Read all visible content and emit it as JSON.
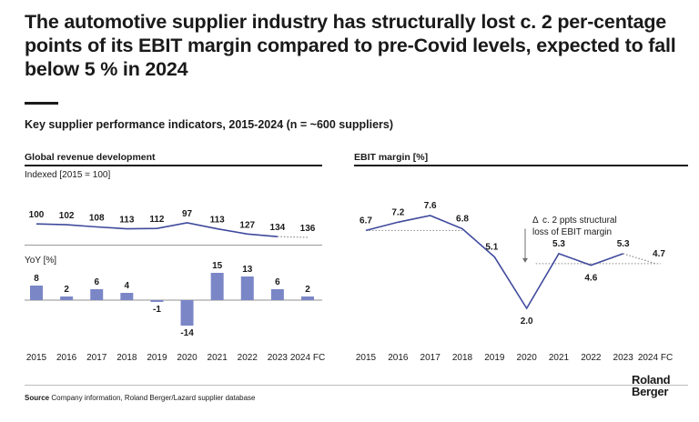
{
  "headline": "The automotive supplier industry has structurally lost c. 2 per-centage points of its EBIT margin compared to pre-Covid levels, expected to fall below 5 % in 2024",
  "subtitle": "Key supplier performance indicators, 2015-2024 (n = ~600 suppliers)",
  "left_panel": {
    "title": "Global revenue development",
    "indexed_label": "Indexed [2015 = 100]",
    "yoy_label": "YoY [%]"
  },
  "right_panel": {
    "title": "EBIT margin [%]",
    "annotation_line1": "c. 2 ppts structural",
    "annotation_line2": "loss of EBIT margin",
    "annotation_symbol": "Δ"
  },
  "colors": {
    "line": "#3f4a9c",
    "bar": "#7b86c7",
    "text": "#1a1a1a",
    "dotted": "#8a8a8a"
  },
  "chart_data": [
    {
      "type": "line",
      "title": "Global revenue development",
      "ylabel": "Indexed [2015 = 100]",
      "categories": [
        "2015",
        "2016",
        "2017",
        "2018",
        "2019",
        "2020",
        "2021",
        "2022",
        "2023",
        "2024 FC"
      ],
      "values": [
        100,
        102,
        108,
        113,
        112,
        97,
        113,
        127,
        134,
        136
      ],
      "forecast_from_index": 8
    },
    {
      "type": "bar",
      "ylabel": "YoY [%]",
      "categories": [
        "2015",
        "2016",
        "2017",
        "2018",
        "2019",
        "2020",
        "2021",
        "2022",
        "2023",
        "2024 FC"
      ],
      "values": [
        8,
        2,
        6,
        4,
        -1,
        -14,
        15,
        13,
        6,
        2
      ]
    },
    {
      "type": "line",
      "title": "EBIT margin [%]",
      "categories": [
        "2015",
        "2016",
        "2017",
        "2018",
        "2019",
        "2020",
        "2021",
        "2022",
        "2023",
        "2024 FC"
      ],
      "values": [
        6.7,
        7.2,
        7.6,
        6.8,
        5.1,
        2.0,
        5.3,
        4.6,
        5.3,
        4.7
      ],
      "forecast_from_index": 8,
      "annotation": "c. 2 ppts structural loss of EBIT margin"
    }
  ],
  "source": {
    "label": "Source",
    "text": "Company information, Roland Berger/Lazard supplier database"
  },
  "logo": {
    "line1": "Roland",
    "line2": "Berger"
  }
}
